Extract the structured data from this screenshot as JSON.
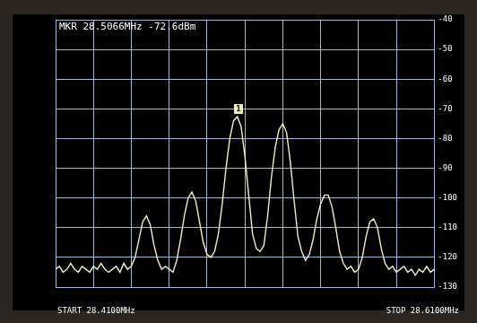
{
  "chart_data": {
    "type": "line",
    "x": [
      28.41,
      28.412,
      28.414,
      28.416,
      28.418,
      28.42,
      28.422,
      28.424,
      28.426,
      28.428,
      28.43,
      28.432,
      28.434,
      28.436,
      28.438,
      28.44,
      28.442,
      28.444,
      28.446,
      28.448,
      28.45,
      28.452,
      28.454,
      28.456,
      28.458,
      28.46,
      28.462,
      28.464,
      28.466,
      28.468,
      28.47,
      28.472,
      28.474,
      28.476,
      28.478,
      28.48,
      28.482,
      28.484,
      28.486,
      28.488,
      28.49,
      28.492,
      28.494,
      28.496,
      28.498,
      28.5,
      28.502,
      28.504,
      28.506,
      28.508,
      28.51,
      28.512,
      28.514,
      28.516,
      28.518,
      28.52,
      28.522,
      28.524,
      28.526,
      28.528,
      28.53,
      28.532,
      28.534,
      28.536,
      28.538,
      28.54,
      28.542,
      28.544,
      28.546,
      28.548,
      28.55,
      28.552,
      28.554,
      28.556,
      28.558,
      28.56,
      28.562,
      28.564,
      28.566,
      28.568,
      28.57,
      28.572,
      28.574,
      28.576,
      28.578,
      28.58,
      28.582,
      28.584,
      28.586,
      28.588,
      28.59,
      28.592,
      28.594,
      28.596,
      28.598,
      28.6,
      28.602,
      28.604,
      28.606,
      28.608,
      28.61
    ],
    "values": [
      -124,
      -123,
      -125,
      -124,
      -122,
      -124,
      -125,
      -123,
      -124,
      -125,
      -123,
      -124,
      -122,
      -124,
      -125,
      -124,
      -123,
      -125,
      -122,
      -124,
      -123,
      -120,
      -114,
      -108,
      -106,
      -109,
      -116,
      -121,
      -124,
      -123,
      -124,
      -125,
      -121,
      -114,
      -106,
      -100,
      -98,
      -101,
      -108,
      -115,
      -119,
      -120,
      -118,
      -112,
      -102,
      -90,
      -80,
      -74,
      -72.6,
      -76,
      -86,
      -99,
      -112,
      -117,
      -118,
      -116,
      -106,
      -93,
      -83,
      -77,
      -75,
      -78,
      -88,
      -101,
      -113,
      -118,
      -121,
      -119,
      -114,
      -107,
      -102,
      -99,
      -99,
      -103,
      -110,
      -118,
      -122,
      -124,
      -123,
      -125,
      -124,
      -120,
      -113,
      -108,
      -107,
      -110,
      -117,
      -122,
      -124,
      -123,
      -125,
      -124,
      -123,
      -125,
      -124,
      -126,
      -124,
      -125,
      -123,
      -125,
      -124
    ],
    "color": "#f0f0c8",
    "xlim": [
      28.41,
      28.61
    ],
    "xticks": [
      28.41,
      28.43,
      28.45,
      28.47,
      28.49,
      28.51,
      28.53,
      28.55,
      28.57,
      28.59,
      28.61
    ],
    "ylim": [
      -130,
      -40
    ],
    "yticks": [
      -130,
      -120,
      -110,
      -100,
      -90,
      -80,
      -70,
      -60,
      -50,
      -40
    ],
    "grid": true,
    "tick_labels": "y",
    "annotations": [
      "MKR 28.5066MHz -72.6dBm",
      "START 28.4100MHz",
      "STOP 28.6100MHz"
    ],
    "peak_marker": {
      "x": 28.5066,
      "y": -72.6,
      "label": "1"
    }
  }
}
